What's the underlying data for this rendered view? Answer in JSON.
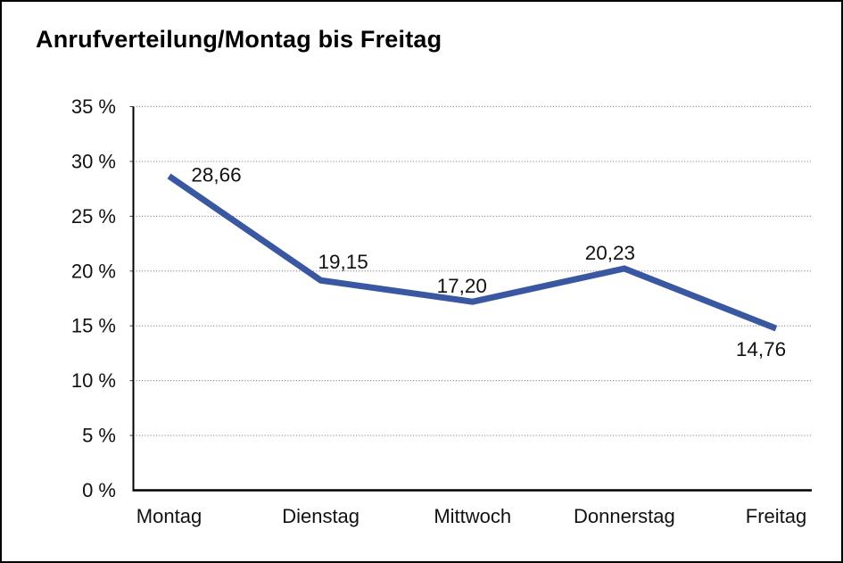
{
  "window": {
    "background": "#ffffff",
    "border_color": "#000000"
  },
  "chart_data": {
    "type": "line",
    "title": "Anrufverteilung/Montag bis Freitag",
    "categories": [
      "Montag",
      "Dienstag",
      "Mittwoch",
      "Donnerstag",
      "Freitag"
    ],
    "series": [
      {
        "name": "Anrufverteilung",
        "values": [
          28.66,
          19.15,
          17.2,
          20.23,
          14.76
        ]
      }
    ],
    "value_labels": [
      "28,66",
      "19,15",
      "17,20",
      "20,23",
      "14,76"
    ],
    "y_axis": {
      "min": 0,
      "max": 35,
      "ticks": [
        {
          "value": 0,
          "label": "0 %"
        },
        {
          "value": 5,
          "label": "5 %"
        },
        {
          "value": 10,
          "label": "10 %"
        },
        {
          "value": 15,
          "label": "15 %"
        },
        {
          "value": 20,
          "label": "20 %"
        },
        {
          "value": 25,
          "label": "25 %"
        },
        {
          "value": 30,
          "label": "30 %"
        },
        {
          "value": 35,
          "label": "35 %"
        }
      ]
    },
    "xlabel": "",
    "ylabel": "",
    "legend": "none",
    "grid": "horizontal-dotted",
    "colors": {
      "line": "#3A57A2",
      "axis": "#000000",
      "grid": "#808080",
      "text": "#111111"
    }
  }
}
